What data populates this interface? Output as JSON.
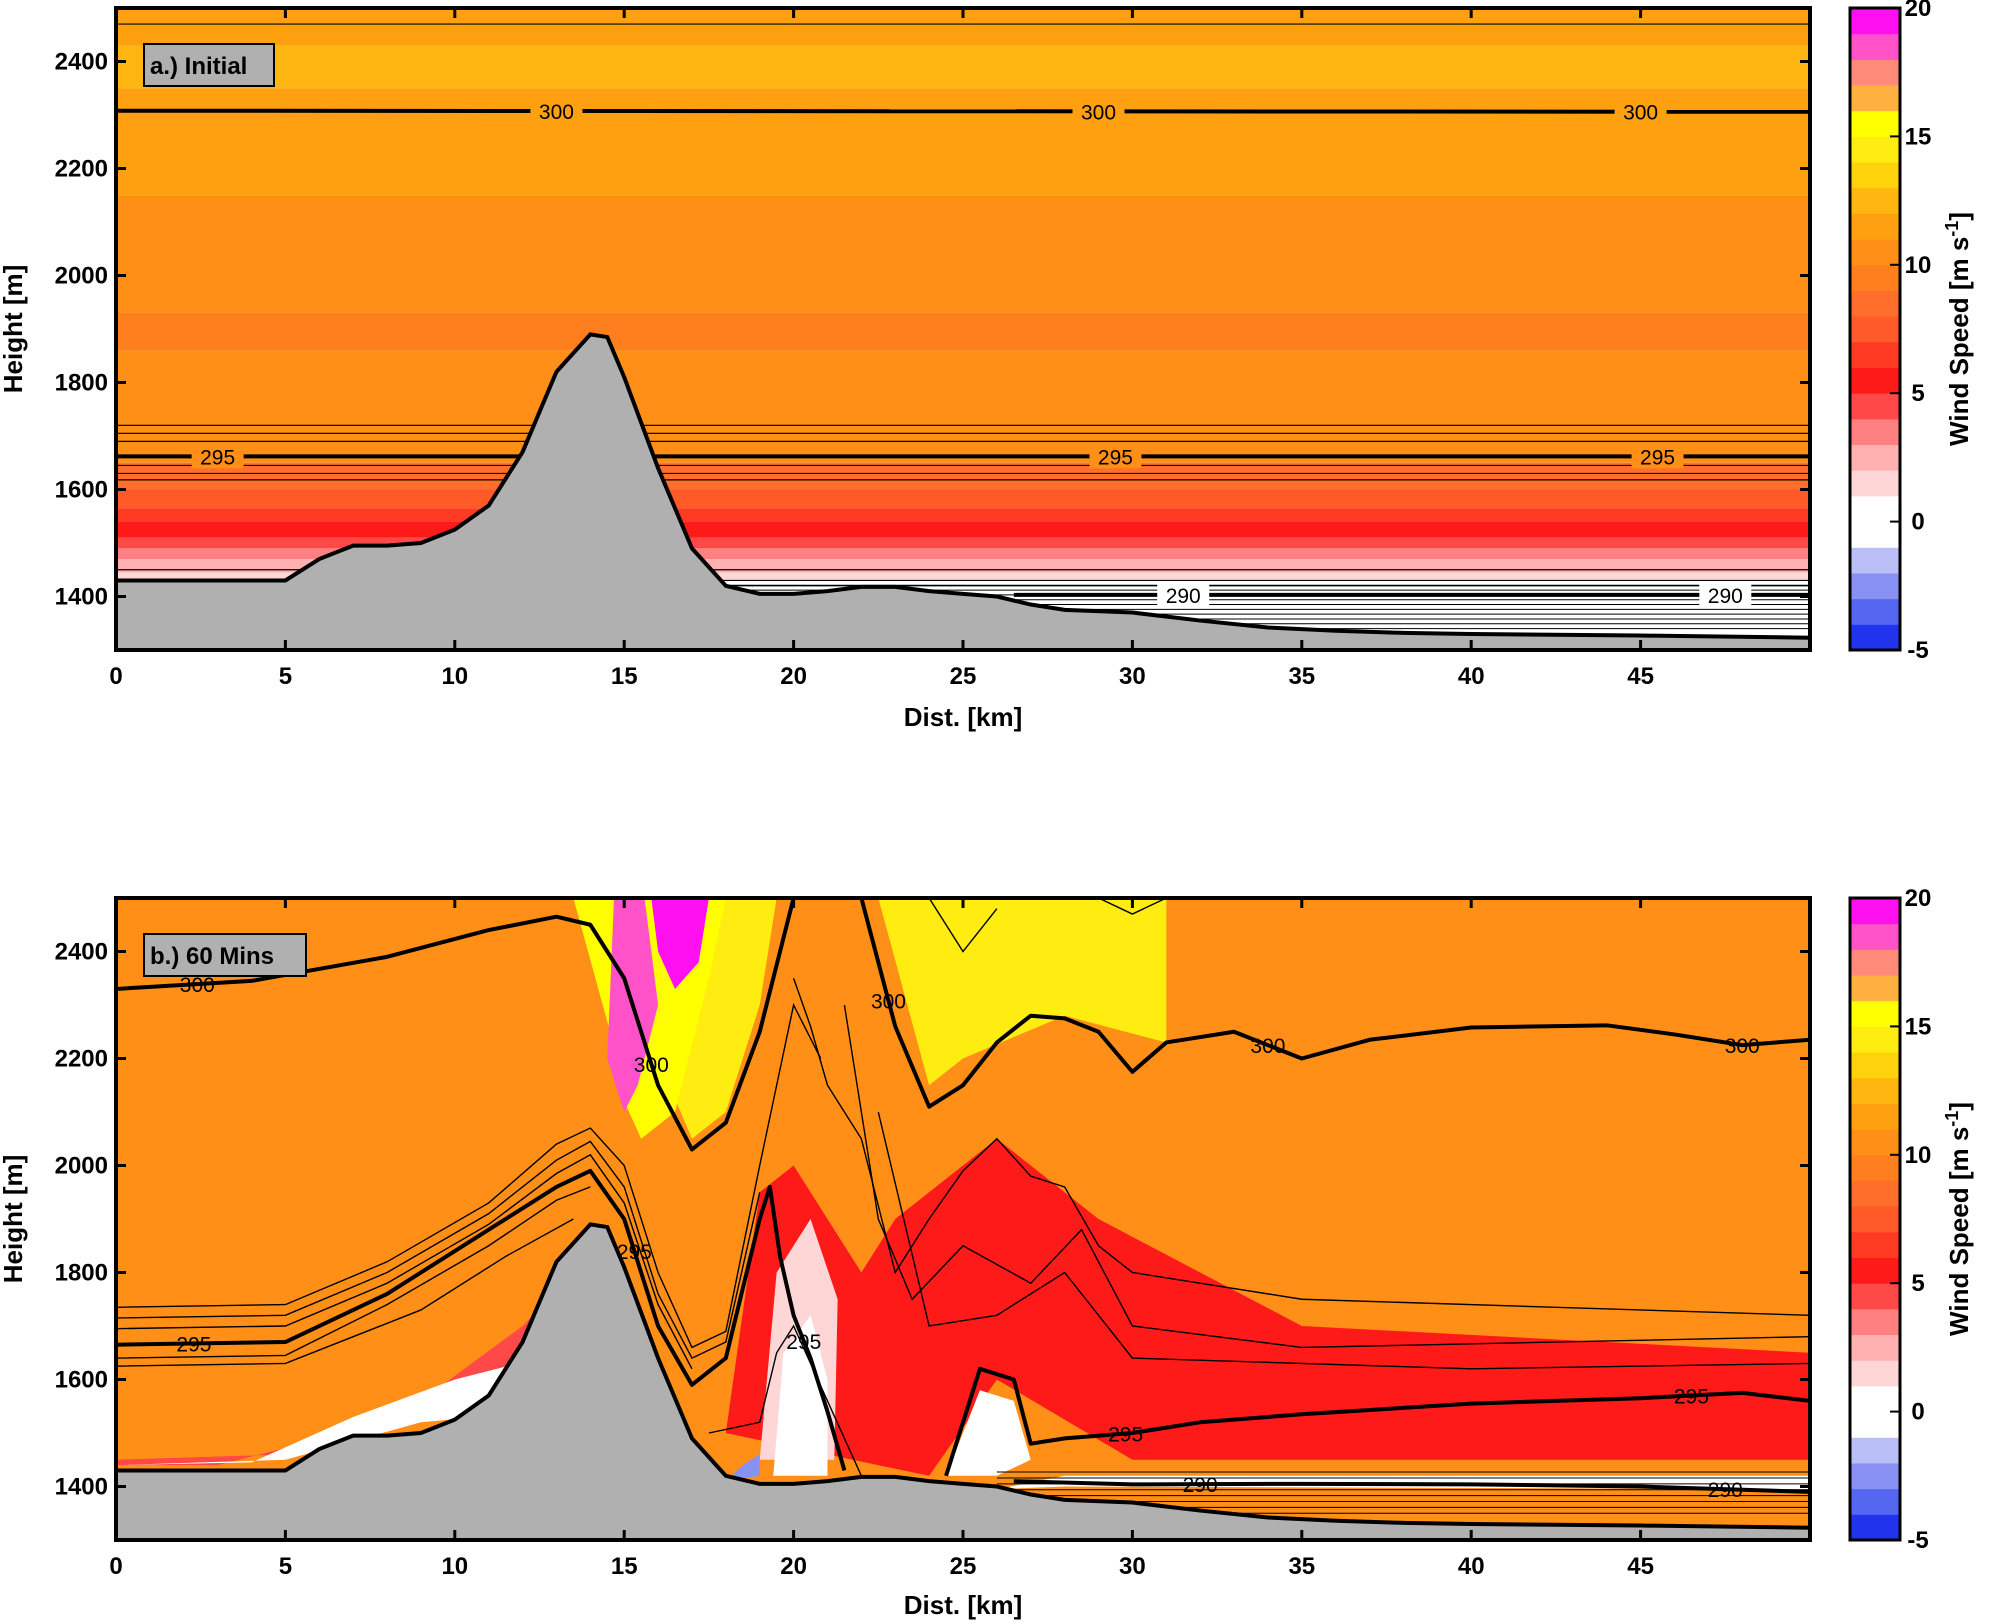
{
  "colorbar": {
    "label": "Wind Speed [m s",
    "label_sup": "-1",
    "label_end": "]",
    "range": [
      -5,
      20
    ],
    "ticks": [
      -5,
      0,
      5,
      10,
      15,
      20
    ],
    "levels": [
      {
        "from": -5,
        "to": -4,
        "color": "#2233ee"
      },
      {
        "from": -4,
        "to": -3,
        "color": "#5566f0"
      },
      {
        "from": -3,
        "to": -2,
        "color": "#8890f4"
      },
      {
        "from": -2,
        "to": -1,
        "color": "#bbbff8"
      },
      {
        "from": -1,
        "to": 0,
        "color": "#ffffff"
      },
      {
        "from": 0,
        "to": 1,
        "color": "#ffffff"
      },
      {
        "from": 1,
        "to": 2,
        "color": "#ffd6d6"
      },
      {
        "from": 2,
        "to": 3,
        "color": "#ffb0b0"
      },
      {
        "from": 3,
        "to": 4,
        "color": "#ff8080"
      },
      {
        "from": 4,
        "to": 5,
        "color": "#ff4848"
      },
      {
        "from": 5,
        "to": 6,
        "color": "#ff1a1a"
      },
      {
        "from": 6,
        "to": 7,
        "color": "#ff3a22"
      },
      {
        "from": 7,
        "to": 8,
        "color": "#ff5a28"
      },
      {
        "from": 8,
        "to": 9,
        "color": "#ff6e2a"
      },
      {
        "from": 9,
        "to": 10,
        "color": "#ff7e1e"
      },
      {
        "from": 10,
        "to": 11,
        "color": "#ff8f16"
      },
      {
        "from": 11,
        "to": 12,
        "color": "#ffa010"
      },
      {
        "from": 12,
        "to": 13,
        "color": "#ffb610"
      },
      {
        "from": 13,
        "to": 14,
        "color": "#ffd20c"
      },
      {
        "from": 14,
        "to": 15,
        "color": "#ffec10"
      },
      {
        "from": 15,
        "to": 16,
        "color": "#ffff00"
      },
      {
        "from": 16,
        "to": 17,
        "color": "#ffb040"
      },
      {
        "from": 17,
        "to": 18,
        "color": "#ff8a7a"
      },
      {
        "from": 18,
        "to": 19,
        "color": "#ff52c8"
      },
      {
        "from": 19,
        "to": 20,
        "color": "#ff10f0"
      }
    ]
  },
  "chart_data": [
    {
      "type": "heatmap",
      "panel_label": "a.) Initial",
      "xlabel": "Dist. [km]",
      "ylabel": "Height [m]",
      "xlim": [
        0,
        50
      ],
      "ylim": [
        1300,
        2500
      ],
      "xticks": [
        0,
        5,
        10,
        15,
        20,
        25,
        30,
        35,
        40,
        45
      ],
      "yticks": [
        1400,
        1600,
        1800,
        2000,
        2200,
        2400
      ],
      "terrain": [
        [
          0,
          1430
        ],
        [
          5,
          1430
        ],
        [
          6,
          1470
        ],
        [
          7,
          1495
        ],
        [
          8,
          1495
        ],
        [
          9,
          1500
        ],
        [
          10,
          1525
        ],
        [
          11,
          1570
        ],
        [
          12,
          1670
        ],
        [
          13,
          1820
        ],
        [
          14,
          1890
        ],
        [
          14.5,
          1885
        ],
        [
          15,
          1810
        ],
        [
          16,
          1640
        ],
        [
          17,
          1490
        ],
        [
          18,
          1420
        ],
        [
          19,
          1405
        ],
        [
          20,
          1405
        ],
        [
          21,
          1410
        ],
        [
          22,
          1418
        ],
        [
          23,
          1418
        ],
        [
          24,
          1410
        ],
        [
          25,
          1405
        ],
        [
          26,
          1400
        ],
        [
          27,
          1385
        ],
        [
          28,
          1375
        ],
        [
          30,
          1370
        ],
        [
          32,
          1355
        ],
        [
          34,
          1342
        ],
        [
          36,
          1336
        ],
        [
          38,
          1332
        ],
        [
          40,
          1330
        ],
        [
          45,
          1327
        ],
        [
          50,
          1323
        ]
      ],
      "wind_layers": [
        {
          "from": 1300,
          "to": 1430,
          "speed": 0
        },
        {
          "from": 1430,
          "to": 1445,
          "speed": 1.5
        },
        {
          "from": 1445,
          "to": 1470,
          "speed": 2.5
        },
        {
          "from": 1470,
          "to": 1490,
          "speed": 3.5
        },
        {
          "from": 1490,
          "to": 1510,
          "speed": 4.5
        },
        {
          "from": 1510,
          "to": 1540,
          "speed": 5.5
        },
        {
          "from": 1540,
          "to": 1565,
          "speed": 6.5
        },
        {
          "from": 1565,
          "to": 1600,
          "speed": 7.5
        },
        {
          "from": 1600,
          "to": 1650,
          "speed": 8.5
        },
        {
          "from": 1650,
          "to": 1860,
          "speed": 10.5
        },
        {
          "from": 1860,
          "to": 1930,
          "speed": 9.5
        },
        {
          "from": 1930,
          "to": 2150,
          "speed": 10.5
        },
        {
          "from": 2150,
          "to": 2350,
          "speed": 11.5
        },
        {
          "from": 2350,
          "to": 2430,
          "speed": 12.5
        },
        {
          "from": 2430,
          "to": 2500,
          "speed": 11.5
        }
      ],
      "isentropes": [
        {
          "label": "300",
          "bold": true,
          "points": [
            [
              0,
              2308
            ],
            [
              50,
              2306
            ]
          ],
          "label_x": [
            13,
            29,
            45
          ]
        },
        {
          "label": "295",
          "bold": true,
          "points": [
            [
              0,
              1662
            ],
            [
              50,
              1662
            ]
          ],
          "label_x": [
            3,
            29.5,
            45.5
          ]
        },
        {
          "label": "290",
          "bold": true,
          "points": [
            [
              26.5,
              1403
            ],
            [
              50,
              1403
            ]
          ],
          "label_x": [
            31.5,
            47.5
          ]
        }
      ]
    },
    {
      "type": "heatmap",
      "panel_label": "b.) 60 Mins",
      "xlabel": "Dist. [km]",
      "ylabel": "Height [m]",
      "xlim": [
        0,
        50
      ],
      "ylim": [
        1300,
        2500
      ],
      "xticks": [
        0,
        5,
        10,
        15,
        20,
        25,
        30,
        35,
        40,
        45
      ],
      "yticks": [
        1400,
        1600,
        1800,
        2000,
        2200,
        2400
      ],
      "isentropes": [
        {
          "label": "300",
          "bold": true,
          "points": [
            [
              0,
              2330
            ],
            [
              4,
              2345
            ],
            [
              8,
              2390
            ],
            [
              11,
              2440
            ],
            [
              13,
              2465
            ],
            [
              14,
              2450
            ],
            [
              15,
              2350
            ],
            [
              16,
              2150
            ],
            [
              17,
              2030
            ],
            [
              18,
              2080
            ],
            [
              19,
              2250
            ],
            [
              20,
              2500
            ]
          ],
          "label_x": [
            2.4,
            15.8
          ]
        },
        {
          "label": "300",
          "bold": true,
          "points": [
            [
              22,
              2500
            ],
            [
              23,
              2260
            ],
            [
              24,
              2110
            ],
            [
              25,
              2150
            ],
            [
              26,
              2230
            ],
            [
              27,
              2280
            ],
            [
              28,
              2275
            ],
            [
              29,
              2250
            ],
            [
              30,
              2175
            ],
            [
              31,
              2230
            ],
            [
              33,
              2250
            ],
            [
              35,
              2200
            ],
            [
              37,
              2235
            ],
            [
              40,
              2258
            ],
            [
              44,
              2262
            ],
            [
              46,
              2245
            ],
            [
              48,
              2225
            ],
            [
              50,
              2235
            ]
          ],
          "label_x": [
            22.8,
            34,
            48
          ]
        },
        {
          "label": "295",
          "bold": true,
          "points": [
            [
              0,
              1665
            ],
            [
              5,
              1670
            ],
            [
              8,
              1760
            ],
            [
              11,
              1880
            ],
            [
              13,
              1960
            ],
            [
              14,
              1990
            ],
            [
              15,
              1900
            ],
            [
              16,
              1700
            ],
            [
              17,
              1590
            ],
            [
              18,
              1640
            ],
            [
              19,
              1900
            ],
            [
              19.3,
              1960
            ],
            [
              19.6,
              1830
            ],
            [
              20,
              1720
            ],
            [
              20.5,
              1640
            ],
            [
              21,
              1540
            ],
            [
              21.5,
              1430
            ]
          ],
          "label_x": [
            2.3,
            15.3,
            20.3
          ]
        },
        {
          "label": "295",
          "bold": true,
          "points": [
            [
              24.5,
              1420
            ],
            [
              25.5,
              1620
            ],
            [
              26.5,
              1600
            ],
            [
              27,
              1480
            ],
            [
              28,
              1490
            ],
            [
              30,
              1500
            ],
            [
              32,
              1520
            ],
            [
              35,
              1535
            ],
            [
              40,
              1555
            ],
            [
              45,
              1565
            ],
            [
              48,
              1575
            ],
            [
              50,
              1560
            ]
          ],
          "label_x": [
            29.8,
            46.5
          ]
        },
        {
          "label": "290",
          "bold": true,
          "points": [
            [
              26.5,
              1410
            ],
            [
              30,
              1404
            ],
            [
              35,
              1405
            ],
            [
              40,
              1404
            ],
            [
              45,
              1400
            ],
            [
              50,
              1390
            ]
          ],
          "label_x": [
            32,
            47.5
          ]
        }
      ],
      "regions": {
        "background_speed": 10.5,
        "magenta_core": [
          [
            15.8,
            2500
          ],
          [
            17.5,
            2500
          ],
          [
            17.2,
            2380
          ],
          [
            16.5,
            2330
          ],
          [
            16,
            2400
          ]
        ],
        "yellow_jet": [
          [
            13.5,
            2500
          ],
          [
            15,
            2500
          ],
          [
            16,
            2200
          ],
          [
            17,
            2050
          ],
          [
            18,
            2100
          ],
          [
            19,
            2300
          ],
          [
            19.5,
            2500
          ],
          [
            22.5,
            2500
          ],
          [
            24,
            2150
          ],
          [
            25,
            2200
          ],
          [
            28,
            2280
          ],
          [
            31,
            2230
          ],
          [
            31,
            2500
          ],
          [
            50,
            2500
          ]
        ],
        "red_wake": [
          [
            18,
            1500
          ],
          [
            19,
            1950
          ],
          [
            20,
            2000
          ],
          [
            21,
            1900
          ],
          [
            22,
            1800
          ],
          [
            23,
            1900
          ],
          [
            26,
            2050
          ],
          [
            29,
            1900
          ],
          [
            35,
            1700
          ],
          [
            50,
            1650
          ],
          [
            50,
            1450
          ],
          [
            30,
            1450
          ],
          [
            26,
            1600
          ],
          [
            24,
            1420
          ]
        ]
      }
    }
  ]
}
